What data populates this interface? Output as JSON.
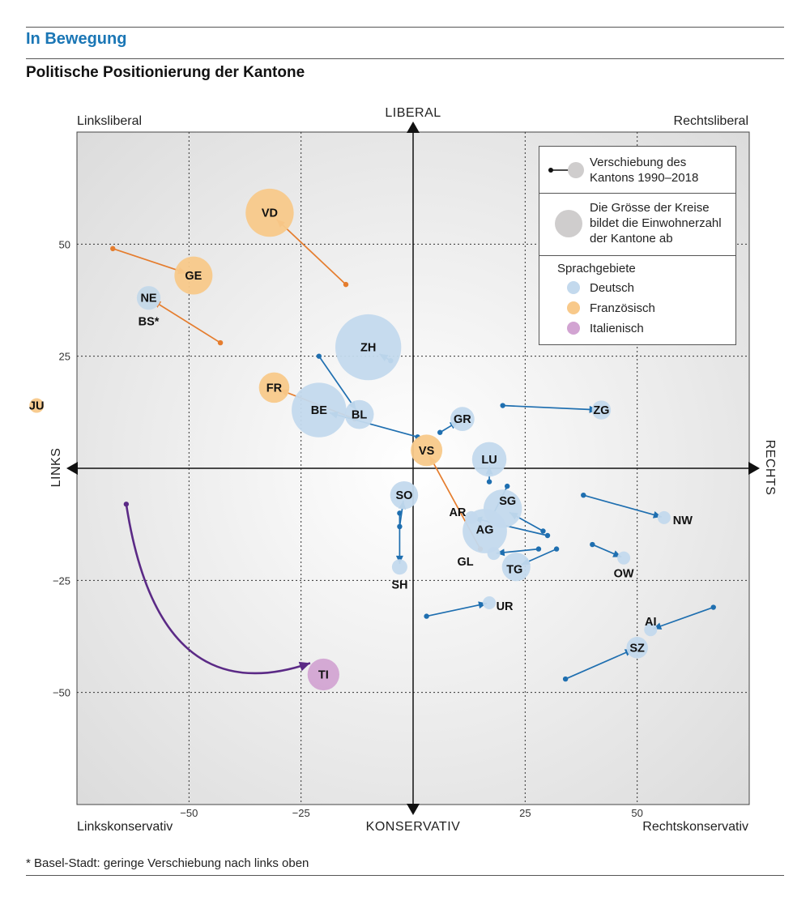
{
  "header": {
    "kicker": "In Bewegung",
    "title": "Politische Positionierung der Kantone"
  },
  "footnote": "* Basel-Stadt: geringe Verschiebung nach links oben",
  "corners": {
    "top_left": "Linksliberal",
    "top_right": "Rechtsliberal",
    "bottom_left": "Linkskonservativ",
    "bottom_right": "Rechtskonservativ"
  },
  "axis_words": {
    "top": "LIBERAL",
    "bottom": "KONSERVATIV",
    "left": "LINKS",
    "right": "RECHTS"
  },
  "legend": {
    "shift_line1": "Verschiebung des",
    "shift_line2": "Kantons 1990–2018",
    "size_line1": "Die Grösse der Kreise",
    "size_line2": "bildet die Einwohnerzahl",
    "size_line3": "der Kantone ab",
    "languages_title": "Sprachgebiete",
    "languages": [
      "Deutsch",
      "Französisch",
      "Italienisch"
    ]
  },
  "colors": {
    "deutsch_fill": "#c3d9ed",
    "deutsch_arrow": "#1f6fb0",
    "franz_fill": "#f8c98a",
    "franz_arrow": "#e57d2e",
    "ital_fill": "#d2a4d2",
    "ital_arrow": "#5b2a86",
    "grid": "#333333"
  },
  "chart_data": {
    "type": "scatter",
    "title": "Politische Positionierung der Kantone",
    "xlabel": "LINKS – RECHTS",
    "ylabel": "KONSERVATIV – LIBERAL",
    "xlim": [
      -75,
      75
    ],
    "ylim": [
      -75,
      75
    ],
    "xticks": [
      -50,
      -25,
      25,
      50
    ],
    "yticks": [
      50,
      25,
      -25,
      -50
    ],
    "xtick_labels": [
      "−50",
      "−25",
      "25",
      "50"
    ],
    "ytick_labels": [
      "50",
      "25",
      "−25",
      "−50"
    ],
    "grid": true,
    "cantons": [
      {
        "code": "VD",
        "lang": "fr",
        "x1990": -15,
        "y1990": 41,
        "x2018": -32,
        "y2018": 57,
        "pop": 800
      },
      {
        "code": "GE",
        "lang": "fr",
        "x1990": -67,
        "y1990": 49,
        "x2018": -49,
        "y2018": 43,
        "pop": 500
      },
      {
        "code": "NE",
        "lang": "fr",
        "x1990": -43,
        "y1990": 28,
        "x2018": -59,
        "y2018": 38,
        "pop": 180
      },
      {
        "code": "BS*",
        "lang": "de",
        "x1990": -59,
        "y1990": 38,
        "x2018": -59,
        "y2018": 38,
        "pop": 195
      },
      {
        "code": "ZH",
        "lang": "de",
        "x1990": -5,
        "y1990": 24,
        "x2018": -10,
        "y2018": 27,
        "pop": 1500
      },
      {
        "code": "FR",
        "lang": "fr",
        "x1990": -13,
        "y1990": 11,
        "x2018": -31,
        "y2018": 18,
        "pop": 320
      },
      {
        "code": "JU",
        "lang": "fr",
        "x1990": -84,
        "y1990": 14,
        "x2018": -84,
        "y2018": 14,
        "pop": 73
      },
      {
        "code": "BE",
        "lang": "de",
        "x1990": 1,
        "y1990": 7,
        "x2018": -21,
        "y2018": 13,
        "pop": 1030
      },
      {
        "code": "BL",
        "lang": "de",
        "x1990": -21,
        "y1990": 25,
        "x2018": -12,
        "y2018": 12,
        "pop": 290
      },
      {
        "code": "GR",
        "lang": "de",
        "x1990": 6,
        "y1990": 8,
        "x2018": 11,
        "y2018": 11,
        "pop": 200
      },
      {
        "code": "ZG",
        "lang": "de",
        "x1990": 20,
        "y1990": 14,
        "x2018": 42,
        "y2018": 13,
        "pop": 125
      },
      {
        "code": "VS",
        "lang": "fr",
        "x1990": 15,
        "y1990": -18,
        "x2018": 3,
        "y2018": 4,
        "pop": 345
      },
      {
        "code": "LU",
        "lang": "de",
        "x1990": 17,
        "y1990": -3,
        "x2018": 17,
        "y2018": 2,
        "pop": 410
      },
      {
        "code": "SO",
        "lang": "de",
        "x1990": -3,
        "y1990": -13,
        "x2018": -2,
        "y2018": -6,
        "pop": 270
      },
      {
        "code": "AG",
        "lang": "de",
        "x1990": 21,
        "y1990": -4,
        "x2018": 16,
        "y2018": -14,
        "pop": 680
      },
      {
        "code": "AR",
        "lang": "de",
        "x1990": 30,
        "y1990": -15,
        "x2018": 13,
        "y2018": -11,
        "pop": 55
      },
      {
        "code": "SG",
        "lang": "de",
        "x1990": 29,
        "y1990": -14,
        "x2018": 20,
        "y2018": -9,
        "pop": 510
      },
      {
        "code": "GL",
        "lang": "de",
        "x1990": 28,
        "y1990": -18,
        "x2018": 18,
        "y2018": -19,
        "pop": 40
      },
      {
        "code": "TG",
        "lang": "de",
        "x1990": 32,
        "y1990": -18,
        "x2018": 23,
        "y2018": -22,
        "pop": 280
      },
      {
        "code": "SH",
        "lang": "de",
        "x1990": -3,
        "y1990": -10,
        "x2018": -3,
        "y2018": -22,
        "pop": 82
      },
      {
        "code": "NW",
        "lang": "de",
        "x1990": 38,
        "y1990": -6,
        "x2018": 56,
        "y2018": -11,
        "pop": 43
      },
      {
        "code": "OW",
        "lang": "de",
        "x1990": 40,
        "y1990": -17,
        "x2018": 47,
        "y2018": -20,
        "pop": 38
      },
      {
        "code": "UR",
        "lang": "de",
        "x1990": 3,
        "y1990": -33,
        "x2018": 17,
        "y2018": -30,
        "pop": 37
      },
      {
        "code": "AI",
        "lang": "de",
        "x1990": 67,
        "y1990": -31,
        "x2018": 53,
        "y2018": -36,
        "pop": 16
      },
      {
        "code": "SZ",
        "lang": "de",
        "x1990": 34,
        "y1990": -47,
        "x2018": 50,
        "y2018": -40,
        "pop": 160
      },
      {
        "code": "TI",
        "lang": "it",
        "x1990": -64,
        "y1990": -8,
        "x2018": -20,
        "y2018": -46,
        "pop": 350
      }
    ]
  }
}
